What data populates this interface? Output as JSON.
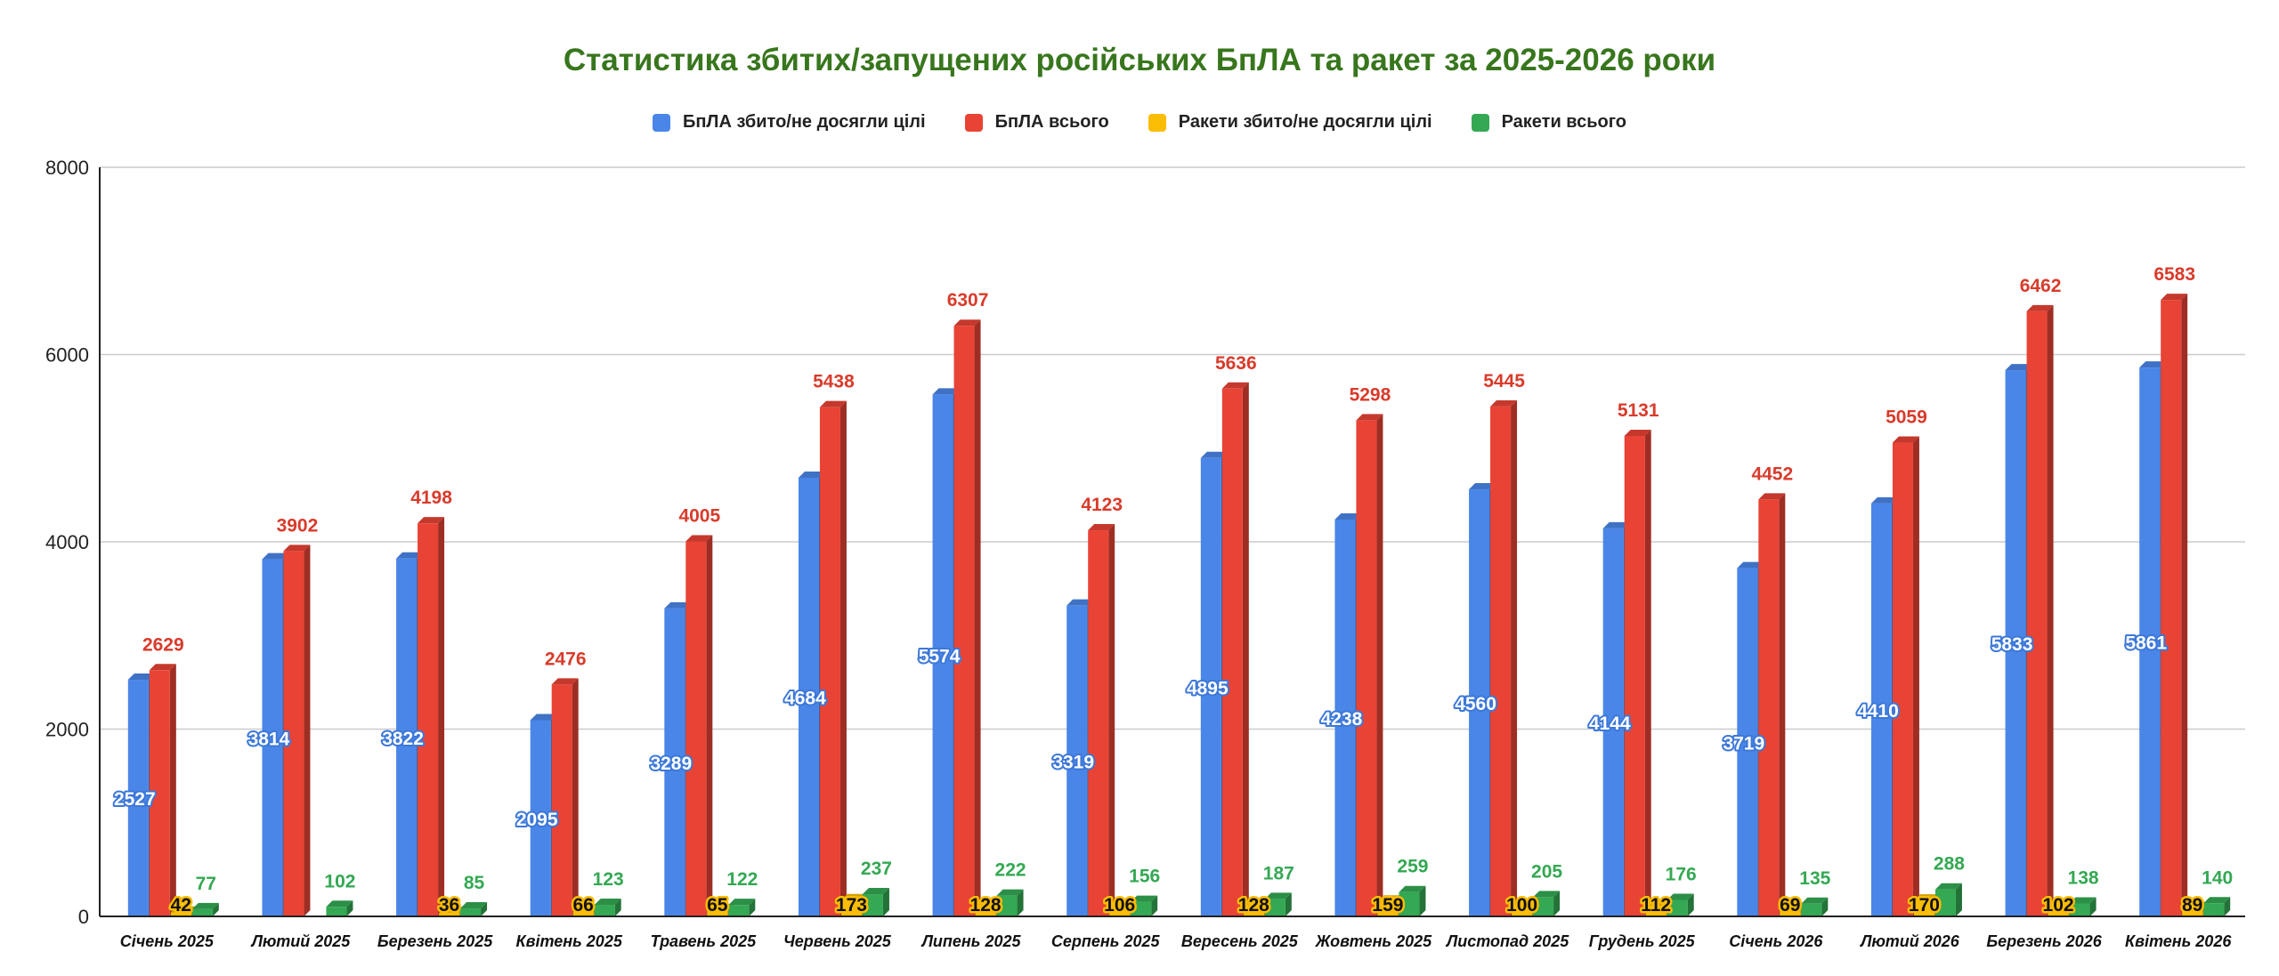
{
  "chart_data": {
    "type": "bar",
    "title": "Статистика збитих/запущених російських БпЛА та ракет за 2025-2026 роки",
    "xlabel": "",
    "ylabel": "",
    "ylim": [
      0,
      8000
    ],
    "yticks": [
      "0",
      "2000",
      "4000",
      "6000",
      "8000"
    ],
    "grid": true,
    "legend_position": "top",
    "categories": [
      "Січень 2025",
      "Лютий 2025",
      "Березень 2025",
      "Квітень 2025",
      "Травень 2025",
      "Червень 2025",
      "Липень 2025",
      "Серпень 2025",
      "Вересень 2025",
      "Жовтень 2025",
      "Листопад 2025",
      "Грудень 2025",
      "Січень 2026",
      "Лютий 2026",
      "Березень 2026",
      "Квітень 2026"
    ],
    "series": [
      {
        "name": "БпЛА збито/не досягли цілі",
        "color": "#4a86e8",
        "values": [
          2527,
          3814,
          3822,
          2095,
          3289,
          4684,
          5574,
          3319,
          4895,
          4238,
          4560,
          4144,
          3719,
          4410,
          5833,
          5861
        ],
        "labels": [
          "2527",
          "3814",
          "3822",
          "2095",
          "3289",
          "4684",
          "5574",
          "3319",
          "4895",
          "4238",
          "4560",
          "4144",
          "3719",
          "4410",
          "5833",
          "5861"
        ]
      },
      {
        "name": "БпЛА всього",
        "color": "#e84335",
        "values": [
          2629,
          3902,
          4198,
          2476,
          4005,
          5438,
          6307,
          4123,
          5636,
          5298,
          5445,
          5131,
          4452,
          5059,
          6462,
          6583
        ],
        "labels": [
          "2629",
          "3902",
          "4198",
          "2476",
          "4005",
          "5438",
          "6307",
          "4123",
          "5636",
          "5298",
          "5445",
          "5131",
          "4452",
          "5059",
          "6462",
          "6583"
        ]
      },
      {
        "name": "Ракети збито/не досягли цілі",
        "color": "#fbbc04",
        "values": [
          42,
          0,
          36,
          66,
          65,
          173,
          128,
          106,
          128,
          159,
          100,
          112,
          69,
          170,
          102,
          89
        ],
        "labels": [
          "42",
          "",
          "36",
          "66",
          "65",
          "173",
          "128",
          "106",
          "128",
          "159",
          "100",
          "112",
          "69",
          "170",
          "102",
          "89"
        ]
      },
      {
        "name": "Ракети всього",
        "color": "#34a853",
        "values": [
          77,
          102,
          85,
          123,
          122,
          237,
          222,
          156,
          187,
          259,
          205,
          176,
          135,
          288,
          138,
          140
        ],
        "labels": [
          "77",
          "102",
          "85",
          "123",
          "122",
          "237",
          "222",
          "156",
          "187",
          "259",
          "205",
          "176",
          "135",
          "288",
          "138",
          "140"
        ]
      }
    ]
  }
}
